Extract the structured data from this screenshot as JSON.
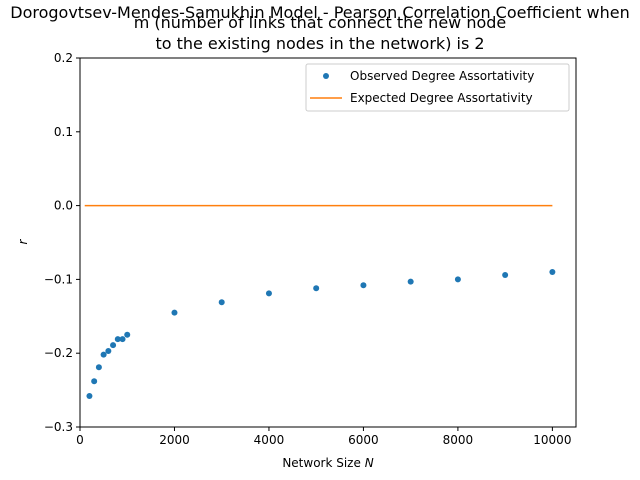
{
  "chart_data": {
    "type": "scatter",
    "title_lines": [
      "Dorogovtsev-Mendes-Samukhin Model - Pearson Correlation Coefficient when",
      "m (number of links that connect the new node",
      "to the existing nodes in the network) is 2"
    ],
    "xlabel": "Network Size ",
    "xlabel_symbol": "N",
    "ylabel": "r",
    "xlim": [
      0,
      10500
    ],
    "ylim": [
      -0.3,
      0.2
    ],
    "xticks": [
      0,
      2000,
      4000,
      6000,
      8000,
      10000
    ],
    "xtick_labels": [
      "0",
      "2000",
      "4000",
      "6000",
      "8000",
      "10000"
    ],
    "yticks": [
      -0.3,
      -0.2,
      -0.1,
      0.0,
      0.1,
      0.2
    ],
    "ytick_labels": [
      "−0.3",
      "−0.2",
      "−0.1",
      "0.0",
      "0.1",
      "0.2"
    ],
    "legend_position": "upper-right",
    "series": [
      {
        "name": "Observed Degree Assortativity",
        "kind": "markers",
        "color": "#1f77b4",
        "x": [
          200,
          300,
          400,
          500,
          600,
          700,
          800,
          900,
          1000,
          2000,
          3000,
          4000,
          5000,
          6000,
          7000,
          8000,
          9000,
          10000
        ],
        "y": [
          -0.258,
          -0.238,
          -0.219,
          -0.202,
          -0.197,
          -0.189,
          -0.181,
          -0.181,
          -0.175,
          -0.145,
          -0.131,
          -0.119,
          -0.112,
          -0.108,
          -0.103,
          -0.1,
          -0.094,
          -0.09
        ]
      },
      {
        "name": "Expected Degree Assortativity",
        "kind": "line",
        "color": "#ff7f0e",
        "x": [
          100,
          10000
        ],
        "y": [
          0.0,
          0.0
        ]
      }
    ]
  }
}
